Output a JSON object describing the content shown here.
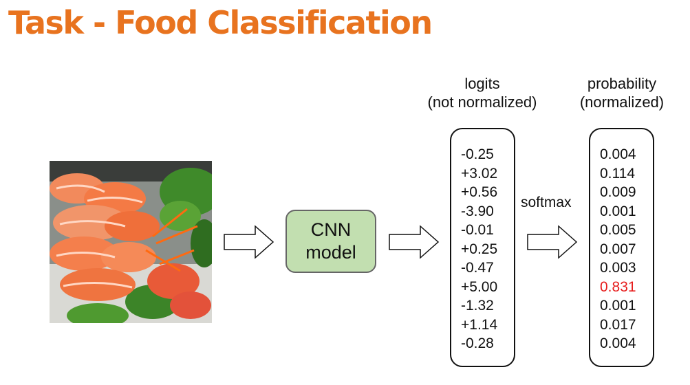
{
  "title": "Task - Food Classification",
  "image": {
    "description_icon": "salmon-sashimi-photo"
  },
  "model": {
    "label": "CNN\nmodel"
  },
  "logits": {
    "header_line1": "logits",
    "header_line2": "(not normalized)",
    "values": [
      "-0.25",
      "+3.02",
      "+0.56",
      "-3.90",
      "-0.01",
      "+0.25",
      "-0.47",
      "+5.00",
      "-1.32",
      "+1.14",
      "-0.28"
    ]
  },
  "softmax": {
    "label": "softmax"
  },
  "probability": {
    "header_line1": "probability",
    "header_line2": "(normalized)",
    "values": [
      "0.004",
      "0.114",
      "0.009",
      "0.001",
      "0.005",
      "0.007",
      "0.003",
      "0.831",
      "0.001",
      "0.017",
      "0.004"
    ],
    "highlight_index": 7,
    "highlight_color": "#e61c1c"
  },
  "colors": {
    "title": "#e8731f",
    "model_fill": "#c2dfb0"
  }
}
